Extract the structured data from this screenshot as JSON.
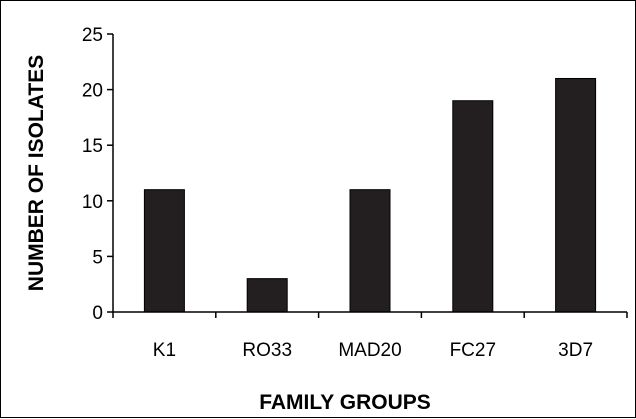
{
  "chart_data": {
    "type": "bar",
    "title": "",
    "xlabel": "FAMILY GROUPS",
    "ylabel": "NUMBER OF ISOLATES",
    "categories": [
      "K1",
      "RO33",
      "MAD20",
      "FC27",
      "3D7"
    ],
    "values": [
      11,
      3,
      11,
      19,
      21
    ],
    "ylim": [
      0,
      25
    ],
    "yticks": [
      0,
      5,
      10,
      15,
      20,
      25
    ],
    "grid": false,
    "legend": "none",
    "colors": {
      "bar": "#231f20",
      "axis": "#000000",
      "background": "#ffffff"
    }
  }
}
